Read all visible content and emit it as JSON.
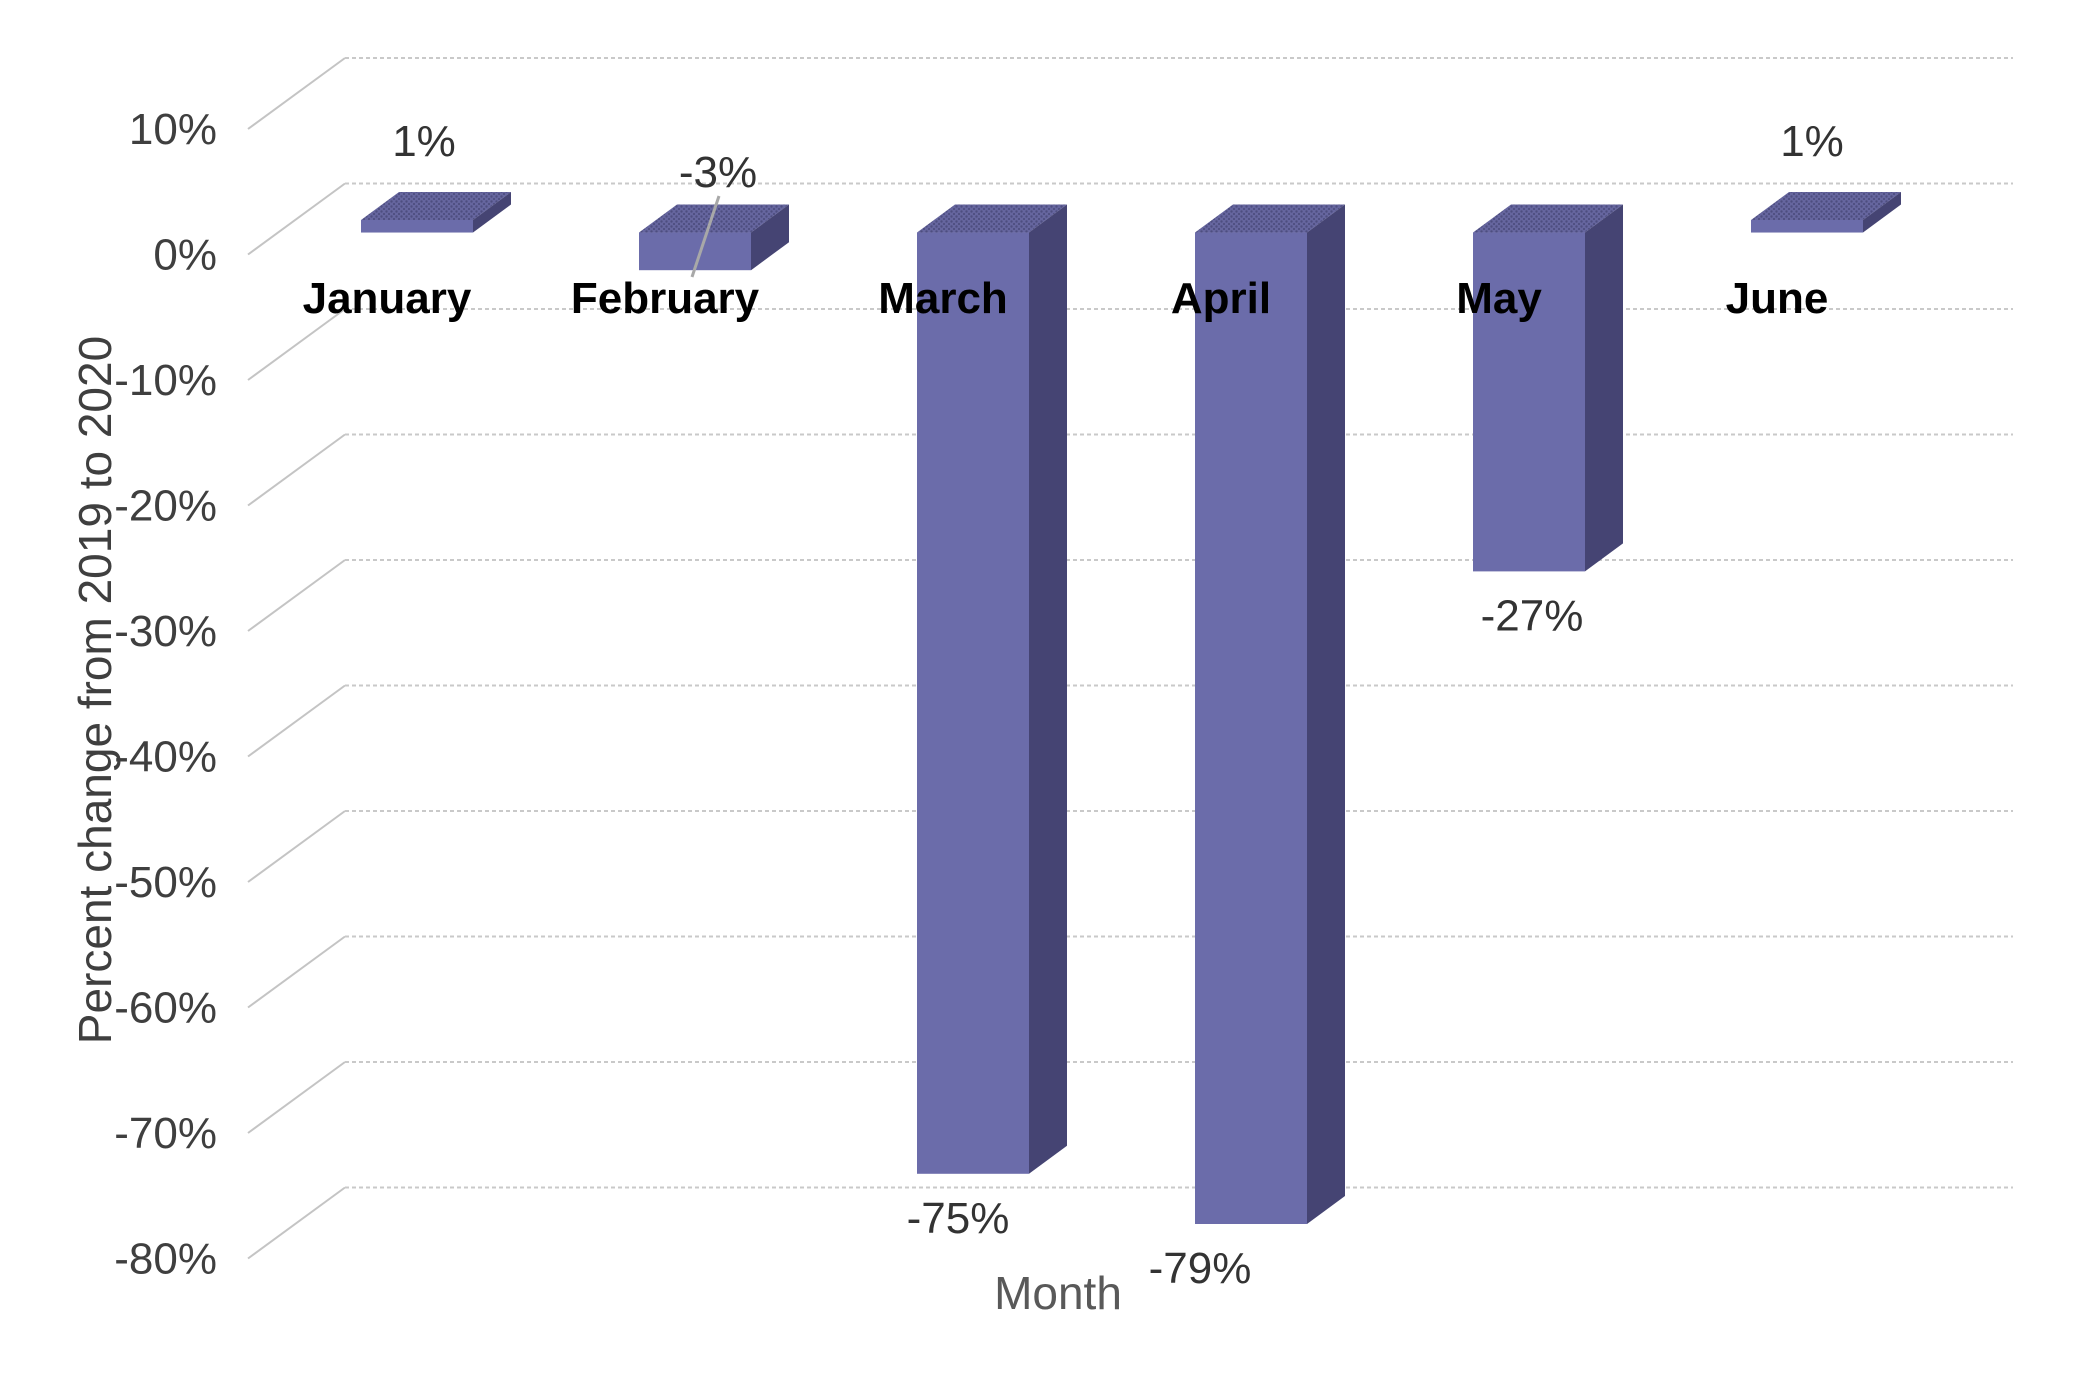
{
  "chart_data": {
    "type": "bar",
    "variant": "3d-column",
    "title": "",
    "xlabel": "Month",
    "ylabel": "Percent change from 2019 to 2020",
    "categories": [
      "January",
      "February",
      "March",
      "April",
      "May",
      "June"
    ],
    "values": [
      1,
      -3,
      -75,
      -79,
      -27,
      1
    ],
    "data_labels": [
      "1%",
      "-3%",
      "-75%",
      "-79%",
      "-27%",
      "1%"
    ],
    "series_name": "Percent change from 2019 to 2020",
    "y_ticks": [
      "10%",
      "0%",
      "-10%",
      "-20%",
      "-30%",
      "-40%",
      "-50%",
      "-60%",
      "-70%",
      "-80%"
    ],
    "y_tick_values": [
      10,
      0,
      -10,
      -20,
      -30,
      -40,
      -50,
      -60,
      -70,
      -80
    ],
    "ylim": [
      -80,
      10
    ],
    "grid": true,
    "legend": false,
    "colors": {
      "bar_front": "#6b6caa",
      "bar_side": "#454473",
      "bar_top": "#66669f",
      "bar_top_dots": "#4e4e80",
      "gridline": "#c9c9c9",
      "axis_connector": "#c4c4c4",
      "leader_line": "#a8a8a8",
      "tick_text": "#3f3f3f",
      "category_text": "#000000",
      "data_label_text": "#333333",
      "x_axis_title_text": "#595959",
      "y_axis_title_text": "#3f3f3f",
      "background": "#ffffff"
    }
  }
}
